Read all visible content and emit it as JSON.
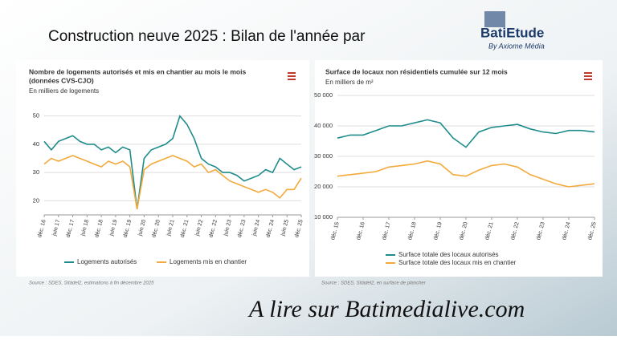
{
  "header": {
    "title": "Construction neuve 2025 : Bilan de l'année par"
  },
  "logo": {
    "name": "BatiEtude",
    "tagline": "By Axiome Média"
  },
  "footer": {
    "text": "A lire sur Batimedialive.com"
  },
  "chart_data": [
    {
      "type": "line",
      "title": "Nombre de logements autorisés et mis en chantier au mois le mois",
      "subtitle": "(données CVS-CJO)",
      "y_label": "En milliers de logements",
      "source": "Source : SDES, Sitàdel2, estimations à fin décembre 2025",
      "categories": [
        "déc. 16",
        null,
        "juin 17",
        null,
        "déc. 17",
        null,
        "juin 18",
        null,
        "déc. 18",
        null,
        "juin 19",
        null,
        "déc. 19",
        null,
        "juin 20",
        null,
        "déc. 20",
        null,
        "juin 21",
        null,
        "déc. 21",
        null,
        "juin 22",
        null,
        "déc. 22",
        null,
        "juin 23",
        null,
        "déc. 23",
        null,
        "juin 24",
        null,
        "déc. 24",
        null,
        "juin 25",
        null,
        "déc. 25"
      ],
      "series": [
        {
          "name": "Logements autorisés",
          "color": "#1f8c8c",
          "values": [
            41,
            38,
            41,
            42,
            43,
            41,
            40,
            40,
            38,
            39,
            37,
            39,
            38,
            17,
            35,
            38,
            39,
            40,
            42,
            50,
            47,
            42,
            35,
            33,
            32,
            30,
            30,
            29,
            27,
            28,
            29,
            31,
            30,
            35,
            33,
            31,
            32
          ]
        },
        {
          "name": "Logements mis en chantier",
          "color": "#f3a93c",
          "values": [
            33,
            35,
            34,
            35,
            36,
            35,
            34,
            33,
            32,
            34,
            33,
            34,
            32,
            17,
            31,
            33,
            34,
            35,
            36,
            35,
            34,
            32,
            33,
            30,
            31,
            29,
            27,
            26,
            25,
            24,
            23,
            24,
            23,
            21,
            24,
            24,
            28
          ]
        }
      ],
      "ylim": [
        15,
        55
      ],
      "yticks": [
        20,
        30,
        40,
        50
      ],
      "grid": true
    },
    {
      "type": "line",
      "title": "Surface de locaux non résidentiels cumulée sur 12 mois",
      "y_label": "En milliers de m²",
      "source": "Source : SDES, Sitàdel2, en surface de plancher",
      "categories": [
        "déc. 15",
        null,
        "déc. 16",
        null,
        "déc. 17",
        null,
        "déc. 18",
        null,
        "déc. 19",
        null,
        "déc. 20",
        null,
        "déc. 21",
        null,
        "déc. 22",
        null,
        "déc. 23",
        null,
        "déc. 24",
        null,
        "déc. 25"
      ],
      "series": [
        {
          "name": "Surface totale des locaux autorisés",
          "color": "#1f8c8c",
          "values": [
            36000,
            37000,
            37000,
            38500,
            40000,
            40000,
            41000,
            42000,
            41000,
            36000,
            33000,
            38000,
            39500,
            40000,
            40500,
            39000,
            38000,
            37500,
            38500,
            38500,
            38000
          ]
        },
        {
          "name": "Surface totale des locaux mis en chantier",
          "color": "#f3a93c",
          "values": [
            23500,
            24000,
            24500,
            25000,
            26500,
            27000,
            27500,
            28500,
            27500,
            24000,
            23500,
            25500,
            27000,
            27500,
            26500,
            24000,
            22500,
            21000,
            20000,
            20500,
            21000
          ]
        }
      ],
      "ylim": [
        10000,
        50000
      ],
      "yticks": [
        {
          "value": 10000,
          "label": "10 000"
        },
        {
          "value": 20000,
          "label": "20 000"
        },
        {
          "value": 30000,
          "label": "30 000"
        },
        {
          "value": 40000,
          "label": "40 000"
        },
        {
          "value": 50000,
          "label": "50 000"
        }
      ],
      "grid": true
    }
  ]
}
